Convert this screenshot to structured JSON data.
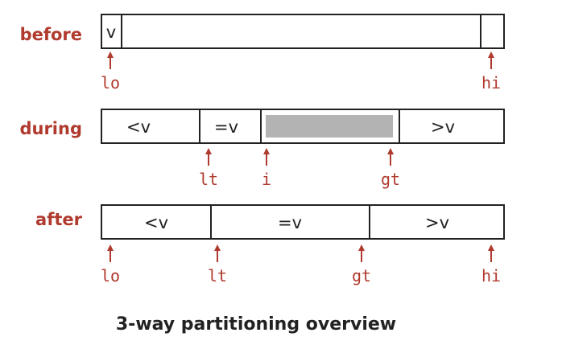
{
  "stages": {
    "before": "before",
    "during": "during",
    "after": "after"
  },
  "cells": {
    "before_first": "v",
    "during_less": "<v",
    "during_equal": "=v",
    "during_greater": ">v",
    "after_less": "<v",
    "after_equal": "=v",
    "after_greater": ">v"
  },
  "indices": {
    "before_lo": "lo",
    "before_hi": "hi",
    "during_lt": "lt",
    "during_i": "i",
    "during_gt": "gt",
    "after_lo": "lo",
    "after_lt": "lt",
    "after_gt": "gt",
    "after_hi": "hi"
  },
  "caption": "3-way partitioning overview",
  "colors": {
    "accent": "#b03a2e",
    "unknown_region": "#b3b3b3",
    "outline": "#222222"
  }
}
